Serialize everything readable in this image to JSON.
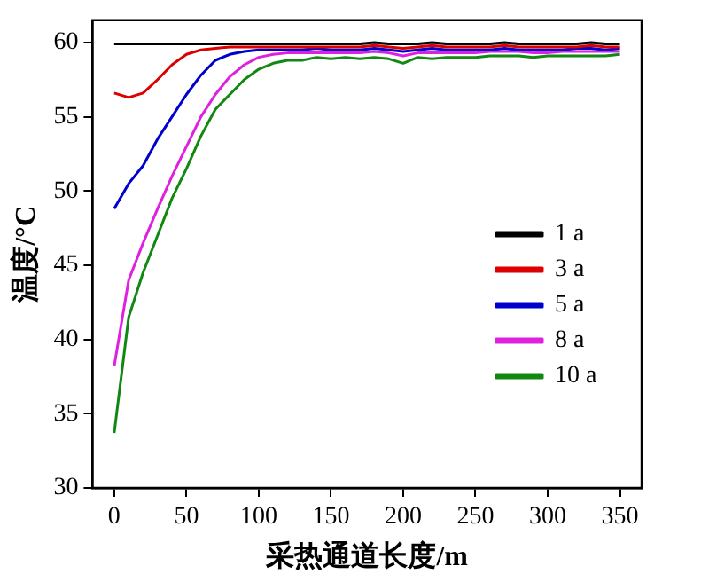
{
  "chart_data": {
    "type": "line",
    "xlabel": "采热通道长度/m",
    "ylabel": "温度/°C",
    "x": [
      0,
      10,
      20,
      30,
      40,
      50,
      60,
      70,
      80,
      90,
      100,
      110,
      120,
      130,
      140,
      150,
      160,
      170,
      180,
      190,
      200,
      210,
      220,
      230,
      240,
      250,
      260,
      270,
      280,
      290,
      300,
      310,
      320,
      330,
      340,
      350
    ],
    "xlim": [
      -15,
      365
    ],
    "xticks": [
      0,
      50,
      100,
      150,
      200,
      250,
      300,
      350
    ],
    "ylim": [
      30,
      61.5
    ],
    "yticks": [
      30,
      35,
      40,
      45,
      50,
      55,
      60
    ],
    "grid": false,
    "legend": "bottom right",
    "marker": "none",
    "line_style": "solid",
    "series": [
      {
        "name": "1 a",
        "color": "#000000",
        "values": [
          59.9,
          59.9,
          59.9,
          59.9,
          59.9,
          59.9,
          59.9,
          59.9,
          59.9,
          59.9,
          59.9,
          59.9,
          59.9,
          59.9,
          59.9,
          59.9,
          59.9,
          59.9,
          60.0,
          59.9,
          59.9,
          59.9,
          60.0,
          59.9,
          59.9,
          59.9,
          59.9,
          60.0,
          59.9,
          59.9,
          59.9,
          59.9,
          59.9,
          60.0,
          59.9,
          59.9
        ]
      },
      {
        "name": "3 a",
        "color": "#dd0000",
        "values": [
          56.6,
          56.3,
          56.6,
          57.5,
          58.5,
          59.2,
          59.5,
          59.6,
          59.7,
          59.7,
          59.7,
          59.7,
          59.7,
          59.7,
          59.7,
          59.7,
          59.7,
          59.7,
          59.8,
          59.7,
          59.6,
          59.7,
          59.8,
          59.7,
          59.7,
          59.7,
          59.7,
          59.8,
          59.7,
          59.7,
          59.7,
          59.7,
          59.7,
          59.8,
          59.7,
          59.7
        ]
      },
      {
        "name": "5 a",
        "color": "#0000cc",
        "values": [
          48.8,
          50.5,
          51.7,
          53.5,
          55.0,
          56.5,
          57.8,
          58.8,
          59.2,
          59.4,
          59.5,
          59.5,
          59.5,
          59.5,
          59.6,
          59.5,
          59.5,
          59.5,
          59.6,
          59.5,
          59.4,
          59.5,
          59.6,
          59.5,
          59.5,
          59.5,
          59.5,
          59.6,
          59.5,
          59.5,
          59.5,
          59.5,
          59.6,
          59.6,
          59.5,
          59.6
        ]
      },
      {
        "name": "8 a",
        "color": "#e020e0",
        "values": [
          38.2,
          44.0,
          46.5,
          48.8,
          51.0,
          53.0,
          55.0,
          56.5,
          57.7,
          58.5,
          59.0,
          59.2,
          59.3,
          59.3,
          59.3,
          59.3,
          59.3,
          59.3,
          59.4,
          59.3,
          59.1,
          59.3,
          59.3,
          59.3,
          59.3,
          59.3,
          59.4,
          59.4,
          59.4,
          59.3,
          59.3,
          59.4,
          59.4,
          59.4,
          59.4,
          59.4
        ]
      },
      {
        "name": "10 a",
        "color": "#118811",
        "values": [
          33.7,
          41.5,
          44.5,
          47.0,
          49.5,
          51.5,
          53.7,
          55.5,
          56.5,
          57.5,
          58.2,
          58.6,
          58.8,
          58.8,
          59.0,
          58.9,
          59.0,
          58.9,
          59.0,
          58.9,
          58.6,
          59.0,
          58.9,
          59.0,
          59.0,
          59.0,
          59.1,
          59.1,
          59.1,
          59.0,
          59.1,
          59.1,
          59.1,
          59.1,
          59.1,
          59.2
        ]
      }
    ]
  }
}
